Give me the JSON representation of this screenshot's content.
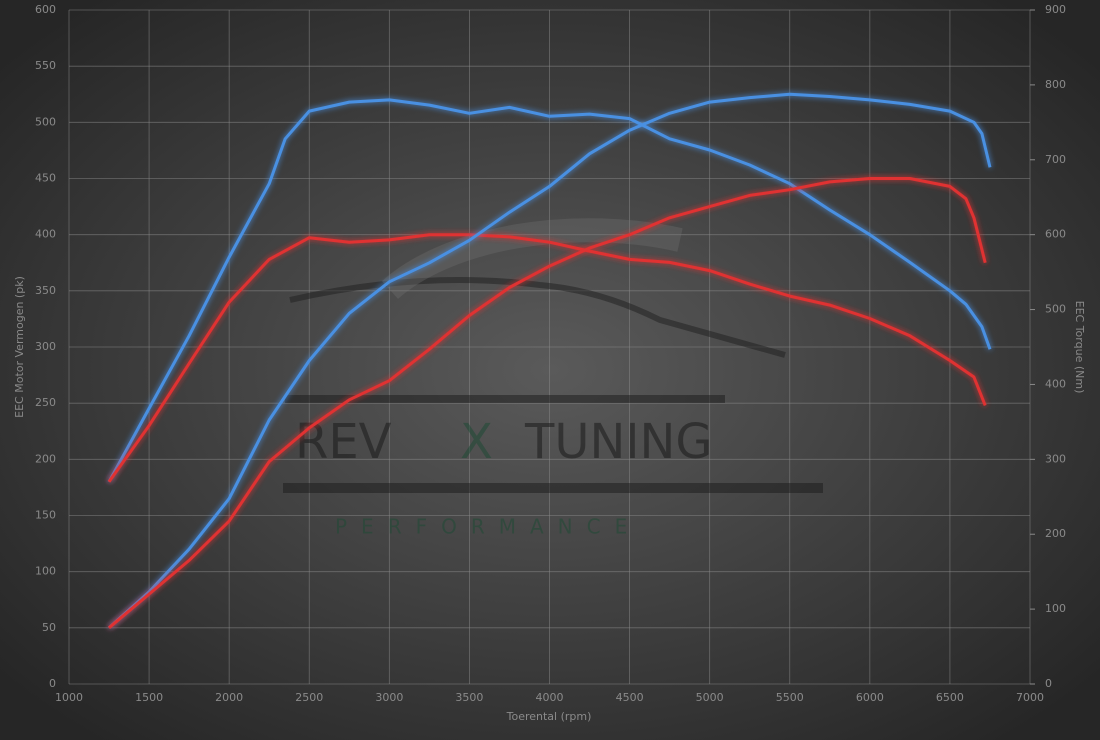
{
  "chart_data": {
    "type": "line",
    "x_label": "Toerental (rpm)",
    "y_label": "EEC Motor Vermogen (pk)",
    "y2_label": "EEC Torque (Nm)",
    "watermark": [
      "REV",
      "X",
      "TUNING",
      "PERFORMANCE"
    ],
    "xlim": [
      1000,
      7000
    ],
    "xticks": [
      1000,
      1500,
      2000,
      2500,
      3000,
      3500,
      4000,
      4500,
      5000,
      5500,
      6000,
      6500,
      7000
    ],
    "ylim": [
      0,
      600
    ],
    "yticks": [
      0,
      50,
      100,
      150,
      200,
      250,
      300,
      350,
      400,
      450,
      500,
      550,
      600
    ],
    "y2lim": [
      0,
      900
    ],
    "y2ticks": [
      0,
      100,
      200,
      300,
      400,
      500,
      600,
      700,
      800,
      900
    ],
    "grid": true,
    "series": [
      {
        "color": "#4a90e2",
        "axis": "y2",
        "x": [
          1250,
          1500,
          1750,
          2000,
          2250,
          2350,
          2500,
          2750,
          3000,
          3250,
          3500,
          3750,
          4000,
          4250,
          4500,
          4750,
          5000,
          5250,
          5500,
          5750,
          6000,
          6250,
          6500,
          6600,
          6700,
          6750
        ],
        "values": [
          270,
          368,
          465,
          570,
          668,
          728,
          765,
          777,
          780,
          773,
          762,
          770,
          758,
          761,
          755,
          728,
          713,
          693,
          668,
          633,
          600,
          563,
          525,
          507,
          477,
          447
        ]
      },
      {
        "color": "#e03030",
        "axis": "y2",
        "x": [
          1250,
          1500,
          1750,
          2000,
          2250,
          2500,
          2750,
          3000,
          3250,
          3500,
          3750,
          4000,
          4250,
          4500,
          4750,
          5000,
          5250,
          5500,
          5750,
          6000,
          6250,
          6500,
          6650,
          6720
        ],
        "values": [
          270,
          345,
          428,
          510,
          567,
          596,
          590,
          593,
          600,
          600,
          597,
          590,
          578,
          567,
          563,
          552,
          534,
          518,
          506,
          488,
          465,
          432,
          410,
          372
        ]
      },
      {
        "color": "#4a90e2",
        "x": [
          1250,
          1500,
          1750,
          2000,
          2250,
          2500,
          2750,
          3000,
          3250,
          3500,
          3750,
          4000,
          4250,
          4500,
          4750,
          5000,
          5250,
          5500,
          5750,
          6000,
          6250,
          6500,
          6650,
          6700,
          6750
        ],
        "values": [
          50,
          82,
          120,
          165,
          235,
          288,
          330,
          358,
          375,
          395,
          420,
          443,
          472,
          493,
          508,
          518,
          522,
          525,
          523,
          520,
          516,
          510,
          500,
          490,
          460
        ]
      },
      {
        "color": "#e03030",
        "x": [
          1250,
          1500,
          1750,
          2000,
          2250,
          2500,
          2750,
          3000,
          3250,
          3500,
          3750,
          4000,
          4250,
          4500,
          4750,
          5000,
          5250,
          5500,
          5750,
          6000,
          6250,
          6500,
          6600,
          6650,
          6720
        ],
        "values": [
          50,
          80,
          110,
          145,
          198,
          228,
          253,
          270,
          298,
          328,
          353,
          372,
          388,
          400,
          415,
          425,
          435,
          440,
          447,
          450,
          450,
          443,
          432,
          415,
          375
        ]
      }
    ]
  }
}
